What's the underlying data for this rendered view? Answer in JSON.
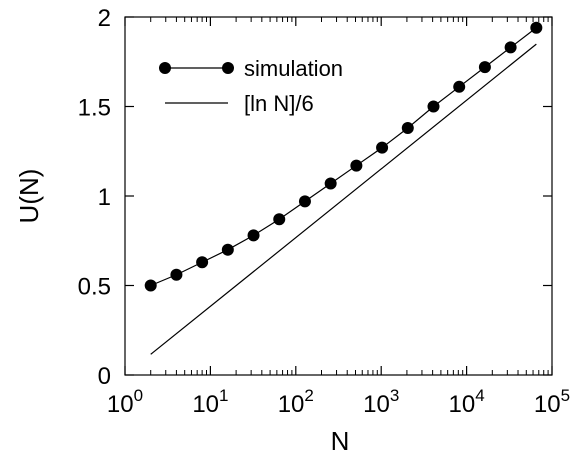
{
  "chart_data": {
    "type": "line",
    "title": "",
    "xlabel": "N",
    "ylabel": "U(N)",
    "x_scale": "log10",
    "xlim": [
      1,
      100000
    ],
    "ylim": [
      0,
      2
    ],
    "x_ticks": [
      {
        "value": 1,
        "base": "10",
        "exp": "0"
      },
      {
        "value": 10,
        "base": "10",
        "exp": "1"
      },
      {
        "value": 100,
        "base": "10",
        "exp": "2"
      },
      {
        "value": 1000,
        "base": "10",
        "exp": "3"
      },
      {
        "value": 10000,
        "base": "10",
        "exp": "4"
      },
      {
        "value": 100000,
        "base": "10",
        "exp": "5"
      }
    ],
    "y_ticks": [
      {
        "value": 0,
        "label": "0"
      },
      {
        "value": 0.5,
        "label": "0.5"
      },
      {
        "value": 1,
        "label": "1"
      },
      {
        "value": 1.5,
        "label": "1.5"
      },
      {
        "value": 2,
        "label": "2"
      }
    ],
    "grid": false,
    "legend_position": "top-left",
    "series": [
      {
        "name": "simulation",
        "style": "line-with-markers",
        "color": "#000000",
        "x": [
          2,
          4,
          8,
          16,
          32,
          64,
          128,
          256,
          512,
          1024,
          2048,
          4096,
          8192,
          16384,
          32768,
          65536
        ],
        "y": [
          0.5,
          0.56,
          0.63,
          0.7,
          0.78,
          0.87,
          0.97,
          1.07,
          1.17,
          1.27,
          1.38,
          1.5,
          1.61,
          1.72,
          1.83,
          1.94
        ]
      },
      {
        "name": "[ln N]/6",
        "style": "line",
        "color": "#000000",
        "x": [
          2,
          65536
        ],
        "y": [
          0.1155,
          1.8484
        ]
      }
    ]
  }
}
